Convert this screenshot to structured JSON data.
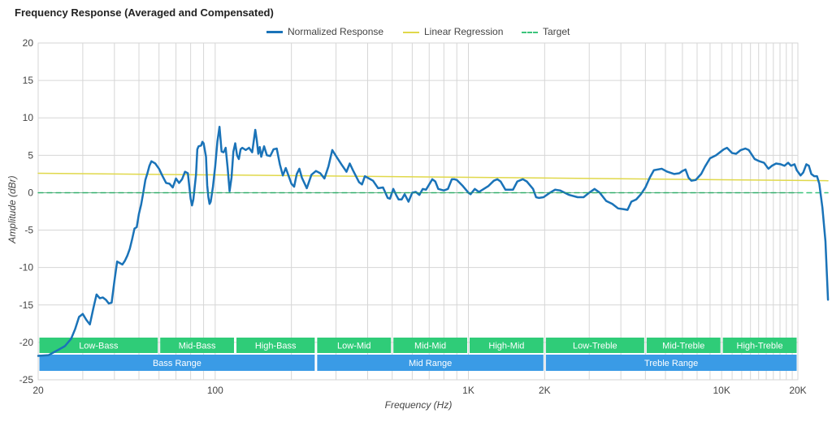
{
  "chart_data": {
    "type": "line",
    "title": "Frequency Response (Averaged and Compensated)",
    "xlabel": "Frequency (Hz)",
    "ylabel": "Amplitude (dBr)",
    "xscale": "log",
    "xlim": [
      20,
      20000
    ],
    "ylim": [
      -25,
      20
    ],
    "x_ticks": [
      {
        "value": 20,
        "label": "20"
      },
      {
        "value": 100,
        "label": "100"
      },
      {
        "value": 1000,
        "label": "1K"
      },
      {
        "value": 2000,
        "label": "2K"
      },
      {
        "value": 10000,
        "label": "10K"
      },
      {
        "value": 20000,
        "label": "20K"
      }
    ],
    "y_ticks": [
      20,
      15,
      10,
      5,
      0,
      -5,
      -10,
      -15,
      -20,
      -25
    ],
    "grid": true,
    "legend_position": "top-center",
    "colors": {
      "normalized": "#1a73b8",
      "regression": "#e0d84a",
      "target": "#3cc47c",
      "band_small": "#2fcc78",
      "band_large": "#3a9be6",
      "grid": "#d6d6d6"
    },
    "series": [
      {
        "name": "Normalized Response",
        "style": "solid",
        "points": [
          [
            20,
            -21.8
          ],
          [
            22,
            -21.7
          ],
          [
            24,
            -21.0
          ],
          [
            25.5,
            -20.5
          ],
          [
            27,
            -19.5
          ],
          [
            28,
            -18.2
          ],
          [
            29,
            -16.6
          ],
          [
            30,
            -16.2
          ],
          [
            31,
            -17.0
          ],
          [
            32,
            -17.6
          ],
          [
            33,
            -15.5
          ],
          [
            34,
            -13.6
          ],
          [
            35,
            -14.1
          ],
          [
            36,
            -14.0
          ],
          [
            37,
            -14.3
          ],
          [
            38,
            -14.8
          ],
          [
            39,
            -14.7
          ],
          [
            40,
            -11.8
          ],
          [
            41,
            -9.2
          ],
          [
            42,
            -9.4
          ],
          [
            43,
            -9.6
          ],
          [
            44,
            -9.1
          ],
          [
            45,
            -8.4
          ],
          [
            46,
            -7.5
          ],
          [
            47,
            -6.2
          ],
          [
            48,
            -4.8
          ],
          [
            49,
            -4.6
          ],
          [
            50,
            -2.8
          ],
          [
            51,
            -1.6
          ],
          [
            52,
            0.0
          ],
          [
            53,
            1.7
          ],
          [
            54,
            2.6
          ],
          [
            55,
            3.6
          ],
          [
            56,
            4.2
          ],
          [
            58,
            3.9
          ],
          [
            60,
            3.2
          ],
          [
            62,
            2.2
          ],
          [
            64,
            1.3
          ],
          [
            66,
            1.2
          ],
          [
            68,
            0.7
          ],
          [
            70,
            1.9
          ],
          [
            72,
            1.3
          ],
          [
            74,
            1.8
          ],
          [
            76,
            2.8
          ],
          [
            78,
            2.6
          ],
          [
            80,
            -0.8
          ],
          [
            81,
            -1.7
          ],
          [
            82,
            -0.9
          ],
          [
            84,
            2.4
          ],
          [
            85,
            5.8
          ],
          [
            86,
            6.2
          ],
          [
            88,
            6.3
          ],
          [
            89,
            6.8
          ],
          [
            90,
            6.6
          ],
          [
            92,
            4.8
          ],
          [
            93,
            1.0
          ],
          [
            94,
            -0.6
          ],
          [
            95,
            -1.5
          ],
          [
            96,
            -1.2
          ],
          [
            98,
            0.8
          ],
          [
            100,
            3.5
          ],
          [
            102,
            6.8
          ],
          [
            104,
            8.8
          ],
          [
            106,
            5.5
          ],
          [
            108,
            5.4
          ],
          [
            110,
            6.0
          ],
          [
            112,
            3.3
          ],
          [
            114,
            0.2
          ],
          [
            116,
            2.0
          ],
          [
            118,
            5.5
          ],
          [
            120,
            6.6
          ],
          [
            122,
            5.0
          ],
          [
            124,
            4.5
          ],
          [
            126,
            5.8
          ],
          [
            128,
            6.0
          ],
          [
            132,
            5.7
          ],
          [
            136,
            6.0
          ],
          [
            140,
            5.4
          ],
          [
            144,
            8.4
          ],
          [
            146,
            7.0
          ],
          [
            148,
            5.2
          ],
          [
            150,
            6.1
          ],
          [
            152,
            4.8
          ],
          [
            156,
            6.2
          ],
          [
            160,
            5.0
          ],
          [
            165,
            4.9
          ],
          [
            170,
            5.8
          ],
          [
            175,
            5.9
          ],
          [
            180,
            3.8
          ],
          [
            185,
            2.3
          ],
          [
            190,
            3.3
          ],
          [
            200,
            1.2
          ],
          [
            205,
            0.8
          ],
          [
            210,
            2.5
          ],
          [
            215,
            3.2
          ],
          [
            220,
            2.0
          ],
          [
            230,
            0.6
          ],
          [
            240,
            2.4
          ],
          [
            250,
            2.9
          ],
          [
            260,
            2.6
          ],
          [
            270,
            1.9
          ],
          [
            280,
            3.5
          ],
          [
            290,
            5.7
          ],
          [
            300,
            4.9
          ],
          [
            315,
            3.8
          ],
          [
            330,
            2.8
          ],
          [
            340,
            3.9
          ],
          [
            350,
            3.0
          ],
          [
            370,
            1.4
          ],
          [
            380,
            1.1
          ],
          [
            390,
            2.2
          ],
          [
            400,
            2.0
          ],
          [
            420,
            1.6
          ],
          [
            440,
            0.6
          ],
          [
            460,
            0.7
          ],
          [
            480,
            -0.7
          ],
          [
            490,
            -0.8
          ],
          [
            505,
            0.5
          ],
          [
            520,
            -0.4
          ],
          [
            530,
            -0.9
          ],
          [
            545,
            -0.9
          ],
          [
            560,
            -0.2
          ],
          [
            580,
            -1.2
          ],
          [
            600,
            0.0
          ],
          [
            620,
            0.1
          ],
          [
            640,
            -0.3
          ],
          [
            660,
            0.5
          ],
          [
            680,
            0.4
          ],
          [
            700,
            1.1
          ],
          [
            720,
            1.8
          ],
          [
            740,
            1.5
          ],
          [
            760,
            0.5
          ],
          [
            800,
            0.3
          ],
          [
            830,
            0.5
          ],
          [
            860,
            1.8
          ],
          [
            880,
            1.8
          ],
          [
            900,
            1.7
          ],
          [
            950,
            0.9
          ],
          [
            1000,
            0.0
          ],
          [
            1020,
            -0.2
          ],
          [
            1060,
            0.5
          ],
          [
            1100,
            0.1
          ],
          [
            1150,
            0.5
          ],
          [
            1200,
            0.9
          ],
          [
            1260,
            1.6
          ],
          [
            1300,
            1.8
          ],
          [
            1340,
            1.5
          ],
          [
            1400,
            0.4
          ],
          [
            1500,
            0.4
          ],
          [
            1560,
            1.5
          ],
          [
            1640,
            1.8
          ],
          [
            1700,
            1.5
          ],
          [
            1800,
            0.5
          ],
          [
            1850,
            -0.6
          ],
          [
            1900,
            -0.7
          ],
          [
            1980,
            -0.6
          ],
          [
            2100,
            0.0
          ],
          [
            2200,
            0.4
          ],
          [
            2300,
            0.3
          ],
          [
            2500,
            -0.3
          ],
          [
            2700,
            -0.6
          ],
          [
            2850,
            -0.6
          ],
          [
            3000,
            0.0
          ],
          [
            3150,
            0.5
          ],
          [
            3300,
            0.0
          ],
          [
            3500,
            -1.1
          ],
          [
            3700,
            -1.5
          ],
          [
            3900,
            -2.1
          ],
          [
            4100,
            -2.2
          ],
          [
            4250,
            -2.3
          ],
          [
            4400,
            -1.2
          ],
          [
            4600,
            -0.9
          ],
          [
            4800,
            -0.2
          ],
          [
            5000,
            0.7
          ],
          [
            5200,
            2.0
          ],
          [
            5400,
            3.0
          ],
          [
            5800,
            3.2
          ],
          [
            6100,
            2.8
          ],
          [
            6500,
            2.5
          ],
          [
            6800,
            2.6
          ],
          [
            7000,
            2.9
          ],
          [
            7200,
            3.1
          ],
          [
            7400,
            2.0
          ],
          [
            7600,
            1.6
          ],
          [
            7900,
            1.7
          ],
          [
            8300,
            2.5
          ],
          [
            8600,
            3.5
          ],
          [
            9000,
            4.6
          ],
          [
            9500,
            5.0
          ],
          [
            10200,
            5.8
          ],
          [
            10500,
            6.0
          ],
          [
            11000,
            5.3
          ],
          [
            11400,
            5.2
          ],
          [
            11900,
            5.7
          ],
          [
            12400,
            5.9
          ],
          [
            12800,
            5.7
          ],
          [
            13500,
            4.5
          ],
          [
            14100,
            4.2
          ],
          [
            14700,
            4.0
          ],
          [
            15300,
            3.2
          ],
          [
            15800,
            3.6
          ],
          [
            16400,
            3.9
          ],
          [
            17100,
            3.8
          ],
          [
            17700,
            3.6
          ],
          [
            18300,
            4.0
          ],
          [
            18800,
            3.6
          ],
          [
            19400,
            3.8
          ],
          [
            19800,
            3.0
          ],
          [
            20500,
            2.3
          ],
          [
            21000,
            2.7
          ],
          [
            21600,
            3.8
          ],
          [
            22100,
            3.6
          ],
          [
            22600,
            2.5
          ],
          [
            23200,
            2.2
          ],
          [
            23800,
            2.2
          ],
          [
            24300,
            1.2
          ],
          [
            25000,
            -2.0
          ],
          [
            25700,
            -6.5
          ],
          [
            26300,
            -14.3
          ]
        ]
      },
      {
        "name": "Linear Regression",
        "style": "solid",
        "points": [
          [
            20,
            2.6
          ],
          [
            26300,
            1.6
          ]
        ]
      },
      {
        "name": "Target",
        "style": "dashed",
        "points": [
          [
            20,
            0
          ],
          [
            26300,
            0
          ]
        ]
      }
    ],
    "bands": [
      {
        "label": "Low-Bass",
        "from": 20,
        "to": 60,
        "row": 1
      },
      {
        "label": "Mid-Bass",
        "from": 60,
        "to": 120,
        "row": 1
      },
      {
        "label": "High-Bass",
        "from": 120,
        "to": 250,
        "row": 1
      },
      {
        "label": "Low-Mid",
        "from": 250,
        "to": 500,
        "row": 1
      },
      {
        "label": "Mid-Mid",
        "from": 500,
        "to": 1000,
        "row": 1
      },
      {
        "label": "High-Mid",
        "from": 1000,
        "to": 2000,
        "row": 1
      },
      {
        "label": "Low-Treble",
        "from": 2000,
        "to": 5000,
        "row": 1
      },
      {
        "label": "Mid-Treble",
        "from": 5000,
        "to": 10000,
        "row": 1
      },
      {
        "label": "High-Treble",
        "from": 10000,
        "to": 20000,
        "row": 1
      },
      {
        "label": "Bass Range",
        "from": 20,
        "to": 250,
        "row": 2
      },
      {
        "label": "Mid Range",
        "from": 250,
        "to": 2000,
        "row": 2
      },
      {
        "label": "Treble Range",
        "from": 2000,
        "to": 20000,
        "row": 2
      }
    ]
  }
}
